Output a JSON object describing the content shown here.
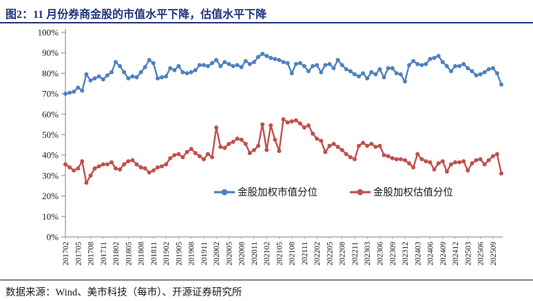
{
  "title": "图2：11 月份券商金股的市值水平下降，估值水平下降",
  "source": "数据来源：Wind、美市科技（每市）、开源证券研究所",
  "colors": {
    "title_accent": "#1f3277",
    "series_blue": "#4f81bd",
    "series_red": "#c0504d",
    "axis": "#9a9a9a",
    "tick_text": "#1a1a1a",
    "legend_text": "#1a1a1a"
  },
  "chart_data": {
    "type": "line",
    "title": "",
    "xlabel": "",
    "ylabel": "",
    "ylim": [
      0,
      100
    ],
    "y_tick_step": 10,
    "y_tick_labels": [
      "0%",
      "10%",
      "20%",
      "30%",
      "40%",
      "50%",
      "60%",
      "70%",
      "80%",
      "90%",
      "100%"
    ],
    "x_tick_every": 3,
    "grid": false,
    "legend_position": "inside-bottom",
    "x": [
      "201702",
      "201703",
      "201704",
      "201705",
      "201706",
      "201707",
      "201708",
      "201709",
      "201710",
      "201711",
      "201712",
      "201801",
      "201802",
      "201803",
      "201804",
      "201805",
      "201806",
      "201807",
      "201808",
      "201809",
      "201810",
      "201811",
      "201812",
      "201901",
      "201902",
      "201903",
      "201904",
      "201905",
      "201906",
      "201907",
      "201908",
      "201909",
      "201910",
      "201911",
      "201912",
      "202001",
      "202002",
      "202003",
      "202004",
      "202005",
      "202006",
      "202007",
      "202008",
      "202009",
      "202010",
      "202011",
      "202012",
      "202101",
      "202102",
      "202103",
      "202104",
      "202105",
      "202106",
      "202107",
      "202108",
      "202109",
      "202110",
      "202111",
      "202112",
      "202201",
      "202202",
      "202203",
      "202204",
      "202205",
      "202206",
      "202207",
      "202208",
      "202209",
      "202210",
      "202211",
      "202212",
      "202302",
      "202303",
      "202304",
      "202305",
      "202306",
      "202307",
      "202308",
      "202309",
      "202310",
      "202311",
      "202312",
      "202401",
      "202402",
      "202403",
      "202404",
      "202405",
      "202406",
      "202407",
      "202408",
      "202409",
      "202410",
      "202411",
      "202412",
      "202501",
      "202502",
      "202503",
      "202504",
      "202505",
      "202506",
      "202507",
      "202508",
      "202509",
      "202510",
      "202511"
    ],
    "series": [
      {
        "name": "金股加权市值分位",
        "color_key": "series_blue",
        "values": [
          70,
          70.5,
          71,
          73,
          71.5,
          79.5,
          76.5,
          77.5,
          78.5,
          77,
          79,
          80.5,
          85.5,
          83.5,
          80.5,
          77.5,
          78.5,
          78,
          80.5,
          83,
          86.5,
          85,
          77.5,
          78,
          78.5,
          82.5,
          81.5,
          83.5,
          80.5,
          80,
          80.5,
          81.5,
          84,
          84,
          83.5,
          85,
          86.5,
          83.5,
          85.5,
          84.5,
          83.5,
          84,
          83,
          86,
          84.5,
          85.5,
          88,
          89.5,
          88.5,
          87.5,
          87,
          86.5,
          85.5,
          85,
          80,
          84.5,
          85,
          83.5,
          81,
          83.5,
          84,
          80.5,
          84,
          84.5,
          82.5,
          86.5,
          84,
          82,
          81,
          79.5,
          78.5,
          80,
          77.5,
          80.5,
          79.5,
          82,
          78,
          82.5,
          82.5,
          80,
          79.5,
          76,
          84,
          86,
          84.5,
          84,
          84.5,
          87,
          87.5,
          88.5,
          85.5,
          83.5,
          81,
          83.5,
          83.5,
          84.5,
          82.5,
          81,
          79,
          79.5,
          80.5,
          82,
          82.5,
          80,
          74.5
        ]
      },
      {
        "name": "金股加权估值分位",
        "color_key": "series_red",
        "values": [
          35.5,
          34,
          32.5,
          33.5,
          37,
          26.5,
          30,
          33.5,
          34.5,
          35.5,
          35.5,
          36.5,
          33.5,
          33,
          35.5,
          37,
          37.5,
          35.5,
          34,
          33.5,
          31.5,
          32.5,
          34,
          34.5,
          35.5,
          38.5,
          40,
          40.5,
          39,
          41.5,
          43,
          41,
          39.5,
          38,
          40.5,
          39,
          53.5,
          44,
          43.5,
          45.5,
          46.5,
          48,
          47.5,
          45.5,
          41,
          42.5,
          44.5,
          55,
          42.5,
          54.5,
          47.5,
          42,
          57.5,
          56,
          56.5,
          57,
          55.5,
          53.5,
          54.5,
          50.5,
          48,
          47,
          41.5,
          44.5,
          45.5,
          44,
          42.5,
          40.5,
          39,
          38,
          44.5,
          46,
          44.5,
          45.5,
          44,
          44.5,
          40,
          39.5,
          38.5,
          38,
          38,
          37.5,
          36,
          34,
          40.5,
          38,
          37,
          36.5,
          33,
          36,
          37,
          32,
          35.5,
          36.5,
          36.5,
          37,
          32.5,
          36,
          37.5,
          38,
          35.5,
          37.5,
          39.5,
          40.5,
          31
        ]
      }
    ]
  }
}
